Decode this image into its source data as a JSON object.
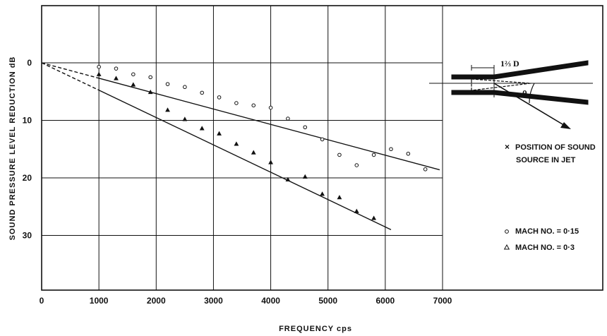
{
  "chart_data": {
    "type": "scatter",
    "title": "",
    "xlabel": "FREQUENCY cps",
    "ylabel": "SOUND PRESSURE LEVEL REDUCTION dB",
    "xlim": [
      0,
      7000
    ],
    "ylim": [
      0,
      40
    ],
    "y_inverted": true,
    "x_ticks": [
      "0",
      "1000",
      "2000",
      "3000",
      "4000",
      "5000",
      "6000",
      "7000"
    ],
    "y_ticks": [
      "0",
      "10",
      "20",
      "30"
    ],
    "grid": true,
    "legend_position": "right",
    "series": [
      {
        "name": "MACH NO. = 0·15",
        "marker": "circle",
        "x": [
          1000,
          1300,
          1600,
          1900,
          2200,
          2500,
          2800,
          3100,
          3400,
          3700,
          4000,
          4300,
          4600,
          4900,
          5200,
          5500,
          5800,
          6100,
          6400,
          6700
        ],
        "y": [
          0.7,
          1,
          2,
          2.5,
          3.7,
          4.2,
          5.2,
          6,
          7,
          7.4,
          7.8,
          9.7,
          11.2,
          13.3,
          16,
          17.8,
          16,
          15,
          15.8,
          18.5
        ],
        "fit": {
          "x": [
            0,
            6950
          ],
          "y": [
            0,
            18.6
          ]
        }
      },
      {
        "name": "MACH NO. = 0·3",
        "marker": "triangle",
        "x": [
          1000,
          1300,
          1600,
          1900,
          2200,
          2500,
          2800,
          3100,
          3400,
          3700,
          4000,
          4300,
          4600,
          4900,
          5200,
          5500,
          5800
        ],
        "y": [
          2,
          2.7,
          3.8,
          5.1,
          8.2,
          9.8,
          11.4,
          12.3,
          14.1,
          15.6,
          17.3,
          20.3,
          19.8,
          22.8,
          23.4,
          25.8,
          27
        ],
        "fit": {
          "x": [
            0,
            6100
          ],
          "y": [
            0,
            29
          ]
        }
      }
    ]
  },
  "inset": {
    "dimension_label": "1⅔ D",
    "angle_label": "θ",
    "note_marker": "×",
    "note_line1": "POSITION OF SOUND",
    "note_line2": "SOURCE IN JET"
  },
  "colors": {
    "ink": "#111111",
    "background": "#ffffff"
  }
}
